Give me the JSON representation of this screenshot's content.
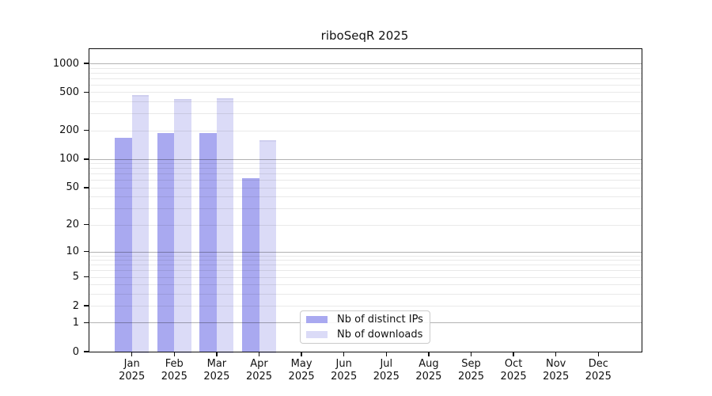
{
  "figure": {
    "title": "riboSeqR 2025"
  },
  "chart_data": {
    "type": "bar",
    "title": "riboSeqR 2025",
    "categories": [
      "Jan",
      "Feb",
      "Mar",
      "Apr",
      "May",
      "Jun",
      "Jul",
      "Aug",
      "Sep",
      "Oct",
      "Nov",
      "Dec"
    ],
    "category_year": "2025",
    "series": [
      {
        "name": "Nb of distinct IPs",
        "color": "#a9a9f0",
        "edge_top_color": null,
        "values": [
          168,
          186,
          186,
          63,
          null,
          null,
          null,
          null,
          null,
          null,
          null,
          null
        ]
      },
      {
        "name": "Nb of downloads",
        "color": "#dbdbf7",
        "edge_top_color": "#cfcfef",
        "values": [
          470,
          425,
          430,
          159,
          null,
          null,
          null,
          null,
          null,
          null,
          null,
          null
        ]
      }
    ],
    "y_axis": {
      "scale": "log10(1+y)",
      "ticks": [
        0,
        1,
        2,
        5,
        10,
        20,
        50,
        100,
        200,
        500,
        1000
      ],
      "max": 1408,
      "grid_major": [
        1,
        10,
        100,
        1000
      ],
      "grid_minor": [
        2,
        3,
        4,
        5,
        6,
        7,
        8,
        9,
        20,
        30,
        40,
        50,
        60,
        70,
        80,
        90,
        200,
        300,
        400,
        500,
        600,
        700,
        800,
        900
      ]
    },
    "x_axis": {
      "label_line2": "2025"
    },
    "legend": {
      "position": "lower center inside"
    },
    "grid": "on"
  }
}
